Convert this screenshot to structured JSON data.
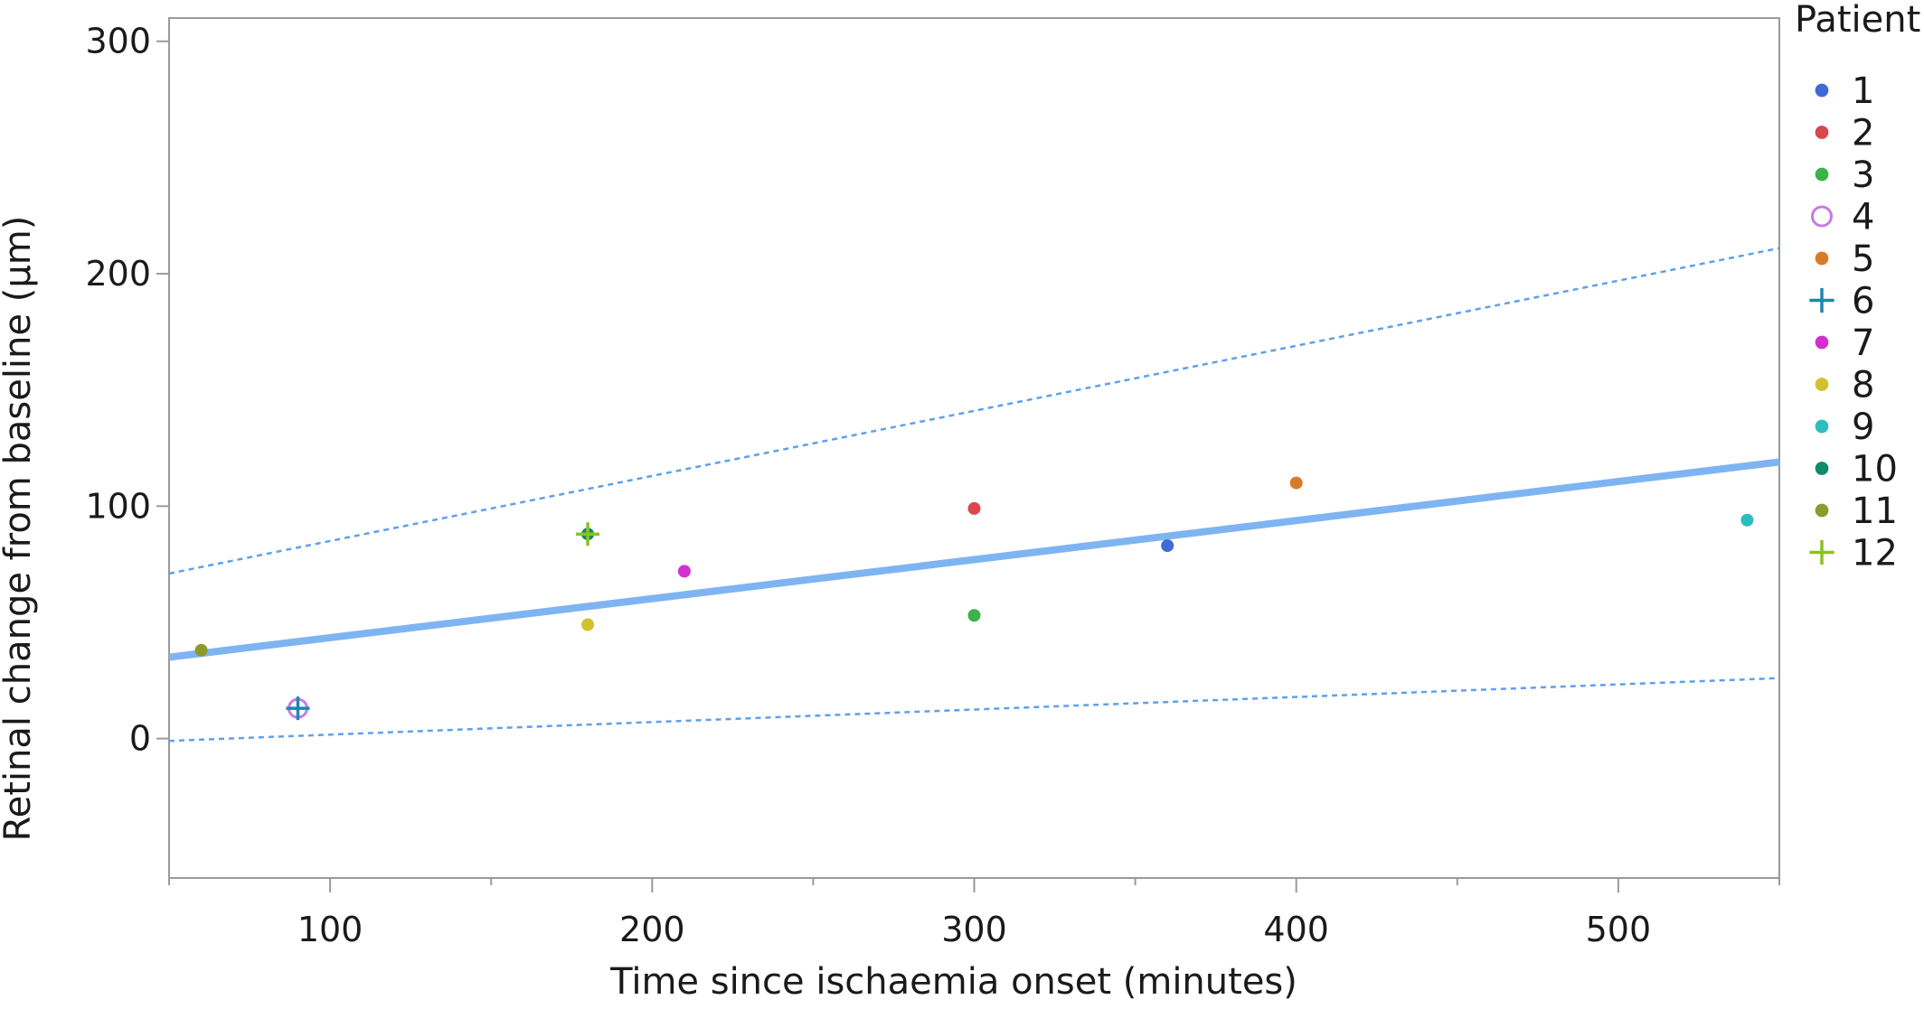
{
  "chart_data": {
    "type": "scatter",
    "xlabel": "Time since ischaemia onset (minutes)",
    "ylabel": "Retinal change from baseline (µm)",
    "xlim": [
      50,
      550
    ],
    "ylim": [
      -60,
      310
    ],
    "xticks": [
      100,
      200,
      300,
      400,
      500
    ],
    "xminor": [
      50,
      150,
      250,
      350,
      450,
      550
    ],
    "yticks": [
      0,
      100,
      200,
      300
    ],
    "grid": false,
    "legend": {
      "title": "Patient",
      "position": "right",
      "entries": [
        {
          "label": "1",
          "color": "#3f6bd6",
          "marker": "dot"
        },
        {
          "label": "2",
          "color": "#d9474f",
          "marker": "dot"
        },
        {
          "label": "3",
          "color": "#3bb34a",
          "marker": "dot"
        },
        {
          "label": "4",
          "color": "#c77be0",
          "marker": "ring"
        },
        {
          "label": "5",
          "color": "#d97a2b",
          "marker": "dot"
        },
        {
          "label": "6",
          "color": "#1f86b0",
          "marker": "plus"
        },
        {
          "label": "7",
          "color": "#d22fcf",
          "marker": "dot"
        },
        {
          "label": "8",
          "color": "#cfc22c",
          "marker": "dot"
        },
        {
          "label": "9",
          "color": "#2ebdbf",
          "marker": "dot"
        },
        {
          "label": "10",
          "color": "#0f8a6a",
          "marker": "dot"
        },
        {
          "label": "11",
          "color": "#8c9a2a",
          "marker": "dot"
        },
        {
          "label": "12",
          "color": "#8cc21f",
          "marker": "plus"
        }
      ]
    },
    "points": [
      {
        "patient": "1",
        "x": 360,
        "y": 83
      },
      {
        "patient": "2",
        "x": 300,
        "y": 99
      },
      {
        "patient": "3",
        "x": 300,
        "y": 53
      },
      {
        "patient": "4",
        "x": 90,
        "y": 13
      },
      {
        "patient": "5",
        "x": 400,
        "y": 110
      },
      {
        "patient": "6",
        "x": 90,
        "y": 13
      },
      {
        "patient": "7",
        "x": 210,
        "y": 72
      },
      {
        "patient": "8",
        "x": 180,
        "y": 49
      },
      {
        "patient": "9",
        "x": 540,
        "y": 94
      },
      {
        "patient": "10",
        "x": 180,
        "y": 88
      },
      {
        "patient": "11",
        "x": 60,
        "y": 38
      },
      {
        "patient": "12",
        "x": 180,
        "y": 88
      }
    ],
    "fit_line": {
      "color": "#7fb4f2",
      "x": [
        50,
        550
      ],
      "y": [
        35,
        119
      ]
    },
    "confidence_band": {
      "color": "#5fa0ea",
      "upper": {
        "x": [
          50,
          550
        ],
        "y": [
          71,
          211
        ]
      },
      "lower": {
        "x": [
          50,
          550
        ],
        "y": [
          -1,
          26
        ]
      }
    }
  }
}
